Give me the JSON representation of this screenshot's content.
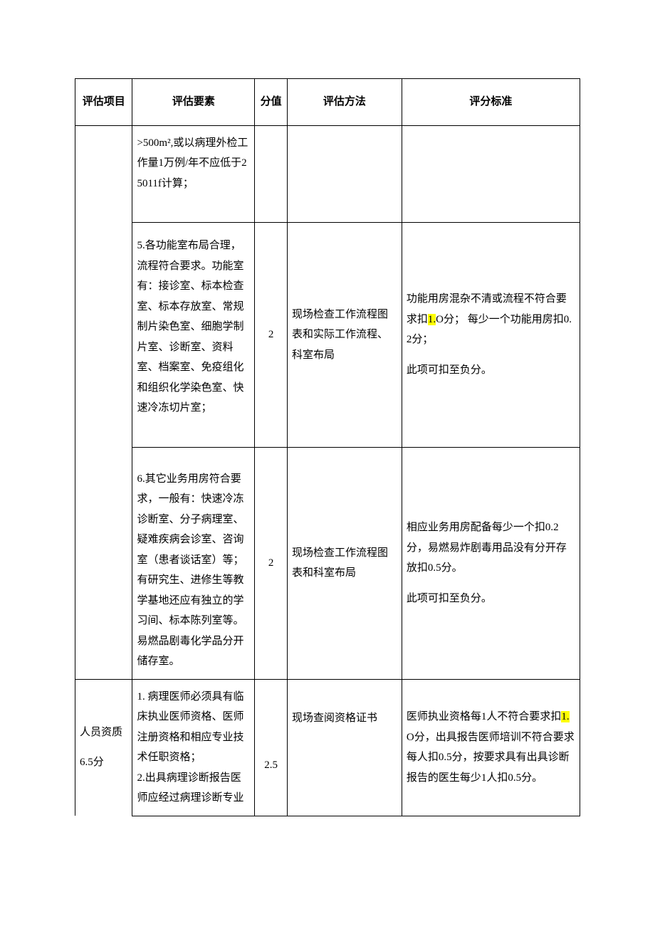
{
  "headers": {
    "project": "评估项目",
    "element": "评估要素",
    "score": "分值",
    "method": "评估方法",
    "criteria": "评分标准"
  },
  "rows": [
    {
      "project": "",
      "element": ">500m²,或以病理外检工作量1万例/年不应低于25011f计算；",
      "score": "",
      "method": "",
      "criteria": ""
    },
    {
      "project": "",
      "element": "5.各功能室布局合理，流程符合要求。功能室有：接诊室、标本检查室、标本存放室、常规制片染色室、细胞学制片室、诊断室、资料室、档案室、免疫组化和组织化学染色室、快速冷冻切片室；",
      "score": "2",
      "method": "现场检查工作流程图表和实际工作流程、科室布局",
      "criteria_parts": [
        {
          "t": "功能用房混杂不清或流程不符合要求扣"
        },
        {
          "t": "1.",
          "hl": true
        },
        {
          "t": "O分； 每少一个功能用房扣0.2分；"
        }
      ],
      "criteria_tail": "此项可扣至负分。"
    },
    {
      "project": "",
      "element": "6.其它业务用房符合要求，一般有：快速冷冻诊断室、分子病理室、疑难疾病会诊室、咨询室（患者谈话室）等；有研究生、进修生等教学基地还应有独立的学习间、标本陈列室等。易燃品剧毒化学品分开储存室。",
      "score": "2",
      "method": "现场检查工作流程图表和科室布局",
      "criteria_plain": "相应业务用房配备每少一个扣0.2分，易燃易炸剧毒用品没有分开存放扣0.5分。",
      "criteria_tail": "此项可扣至负分。"
    },
    {
      "project": "人员资质",
      "project_sub": "6.5分",
      "element": "1. 病理医师必须具有临床执业医师资格、医师注册资格和相应专业技术任职资格；\n2.出具病理诊断报告医师应经过病理诊断专业",
      "score": "2.5",
      "method": "现场查阅资格证书",
      "criteria_parts": [
        {
          "t": "医师执业资格每1人不符合要求扣"
        },
        {
          "t": "1.",
          "hl": true
        },
        {
          "t": "O分，出具报告医师培训不符合要求每人扣0.5分，按要求具有出具诊断报告的医生每少1人扣0.5分。"
        }
      ]
    }
  ]
}
